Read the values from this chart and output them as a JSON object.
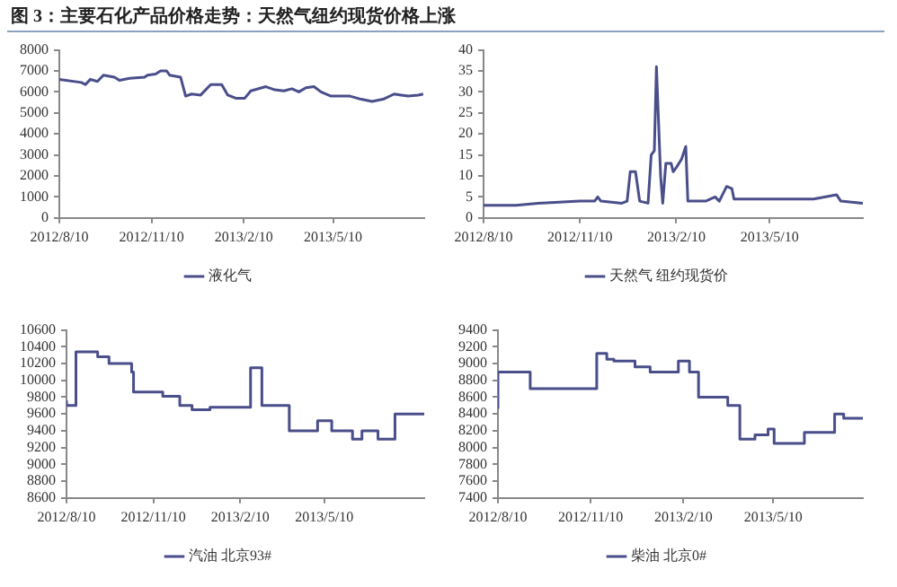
{
  "chart_data": [
    {
      "type": "line",
      "title": "图 3：主要石化产品价格走势：天然气纽约现货价格上涨",
      "legend": "bottom",
      "grid": false,
      "xlim": [
        "2012-08-10",
        "2013-08-09"
      ],
      "xticks": [
        {
          "value": "2012-08-10",
          "label": "2012/8/10"
        },
        {
          "value": "2012-11-10",
          "label": "2012/11/10"
        },
        {
          "value": "2013-02-10",
          "label": "2013/2/10"
        },
        {
          "value": "2013-05-10",
          "label": "2013/5/10"
        }
      ],
      "ylim": [
        0,
        8000
      ],
      "yticks": [
        0,
        1000,
        2000,
        3000,
        4000,
        5000,
        6000,
        7000,
        8000
      ],
      "series": [
        {
          "name": "液化气",
          "color": "#4a4e8a",
          "x": [
            "2012-08-10",
            "2012-09-01",
            "2012-09-05",
            "2012-09-10",
            "2012-09-17",
            "2012-09-23",
            "2012-10-04",
            "2012-10-09",
            "2012-10-19",
            "2012-11-03",
            "2012-11-06",
            "2012-11-14",
            "2012-11-19",
            "2012-11-25",
            "2012-11-28",
            "2012-12-09",
            "2012-12-14",
            "2012-12-20",
            "2012-12-29",
            "2013-01-08",
            "2013-01-19",
            "2013-01-25",
            "2013-02-02",
            "2013-02-11",
            "2013-02-17",
            "2013-03-04",
            "2013-03-13",
            "2013-03-22",
            "2013-03-30",
            "2013-04-06",
            "2013-04-13",
            "2013-04-21",
            "2013-04-28",
            "2013-05-08",
            "2013-05-16",
            "2013-05-27",
            "2013-06-07",
            "2013-06-18",
            "2013-06-29",
            "2013-07-10",
            "2013-07-17",
            "2013-07-24",
            "2013-08-03",
            "2013-08-08"
          ],
          "values": [
            6600,
            6450,
            6350,
            6600,
            6500,
            6800,
            6700,
            6550,
            6650,
            6700,
            6800,
            6850,
            7000,
            7000,
            6800,
            6700,
            5800,
            5900,
            5850,
            6350,
            6350,
            5850,
            5700,
            5700,
            6050,
            6250,
            6100,
            6050,
            6150,
            6000,
            6200,
            6250,
            6000,
            5800,
            5800,
            5800,
            5650,
            5550,
            5650,
            5900,
            5850,
            5800,
            5850,
            5900
          ]
        }
      ]
    },
    {
      "type": "line",
      "legend": "bottom",
      "grid": false,
      "xlim": [
        "2012-08-10",
        "2013-08-07"
      ],
      "xticks": [
        {
          "value": "2012-08-10",
          "label": "2012/8/10"
        },
        {
          "value": "2012-11-10",
          "label": "2012/11/10"
        },
        {
          "value": "2013-02-10",
          "label": "2013/2/10"
        },
        {
          "value": "2013-05-10",
          "label": "2013/5/10"
        }
      ],
      "ylim": [
        0,
        40
      ],
      "yticks": [
        0,
        5,
        10,
        15,
        20,
        25,
        30,
        35,
        40
      ],
      "series": [
        {
          "name": "天然气 纽约现货价",
          "color": "#4a4e8a",
          "x": [
            "2012-08-10",
            "2012-09-10",
            "2012-10-01",
            "2012-11-10",
            "2012-11-24",
            "2012-11-27",
            "2012-11-30",
            "2012-12-20",
            "2012-12-25",
            "2012-12-28",
            "2013-01-02",
            "2013-01-06",
            "2013-01-14",
            "2013-01-17",
            "2013-01-20",
            "2013-01-22",
            "2013-01-26",
            "2013-01-28",
            "2013-01-31",
            "2013-02-05",
            "2013-02-07",
            "2013-02-10",
            "2013-02-15",
            "2013-02-19",
            "2013-02-21",
            "2013-03-10",
            "2013-03-19",
            "2013-03-23",
            "2013-03-30",
            "2013-04-04",
            "2013-04-06",
            "2013-05-27",
            "2013-06-21",
            "2013-07-13",
            "2013-07-17",
            "2013-08-07"
          ],
          "values": [
            3,
            3,
            3.5,
            4,
            4,
            5,
            4,
            3.5,
            4,
            11,
            11,
            4,
            3.5,
            15,
            16,
            36,
            10,
            3.5,
            13,
            13,
            11,
            12,
            14,
            17,
            4,
            4,
            5,
            4,
            7.5,
            7,
            4.5,
            4.5,
            4.5,
            5.5,
            4,
            3.5
          ]
        }
      ]
    },
    {
      "type": "step",
      "legend": "bottom",
      "grid": false,
      "xlim": [
        "2012-08-10",
        "2013-08-24"
      ],
      "xticks": [
        {
          "value": "2012-08-10",
          "label": "2012/8/10"
        },
        {
          "value": "2012-11-10",
          "label": "2012/11/10"
        },
        {
          "value": "2013-02-10",
          "label": "2013/2/10"
        },
        {
          "value": "2013-05-10",
          "label": "2013/5/10"
        }
      ],
      "ylim": [
        8600,
        10600
      ],
      "yticks": [
        8600,
        8800,
        9000,
        9200,
        9400,
        9600,
        9800,
        10000,
        10200,
        10400,
        10600
      ],
      "series": [
        {
          "name": "汽油 北京93#",
          "color": "#4a4e8a",
          "x": [
            "2012-08-10",
            "2012-08-20",
            "2012-09-12",
            "2012-09-24",
            "2012-10-18",
            "2012-10-20",
            "2012-11-20",
            "2012-12-08",
            "2012-12-21",
            "2013-01-09",
            "2013-02-21",
            "2013-03-05",
            "2013-04-03",
            "2013-05-03",
            "2013-05-18",
            "2013-06-09",
            "2013-06-19",
            "2013-07-06",
            "2013-07-24",
            "2013-08-04",
            "2013-08-24"
          ],
          "values": [
            9760,
            9700,
            10340,
            10280,
            10200,
            10100,
            9860,
            9810,
            9700,
            9650,
            9680,
            10150,
            9700,
            9400,
            9520,
            9400,
            9300,
            9400,
            9300,
            9600,
            9600
          ]
        }
      ]
    },
    {
      "type": "step",
      "legend": "bottom",
      "grid": false,
      "xlim": [
        "2012-08-10",
        "2013-08-07"
      ],
      "xticks": [
        {
          "value": "2012-08-10",
          "label": "2012/8/10"
        },
        {
          "value": "2012-11-10",
          "label": "2012/11/10"
        },
        {
          "value": "2013-02-10",
          "label": "2013/2/10"
        },
        {
          "value": "2013-05-10",
          "label": "2013/5/10"
        }
      ],
      "ylim": [
        7400,
        9400
      ],
      "yticks": [
        7400,
        7600,
        7800,
        8000,
        8200,
        8400,
        8600,
        8800,
        9000,
        9200,
        9400
      ],
      "series": [
        {
          "name": "柴油 北京0#",
          "color": "#4a4e8a",
          "x": [
            "2012-08-10",
            "2012-09-11",
            "2012-11-16",
            "2012-11-26",
            "2012-12-03",
            "2012-12-24",
            "2013-01-08",
            "2013-02-05",
            "2013-02-16",
            "2013-02-25",
            "2013-03-26",
            "2013-04-07",
            "2013-04-22",
            "2013-05-05",
            "2013-05-11",
            "2013-06-10",
            "2013-07-10",
            "2013-07-19",
            "2013-07-30",
            "2013-08-07"
          ],
          "values": [
            8460,
            8900,
            8700,
            9120,
            9050,
            9030,
            8960,
            8900,
            9030,
            8900,
            8600,
            8500,
            8100,
            8150,
            8220,
            8050,
            8180,
            8400,
            8350,
            8350
          ]
        }
      ]
    }
  ]
}
